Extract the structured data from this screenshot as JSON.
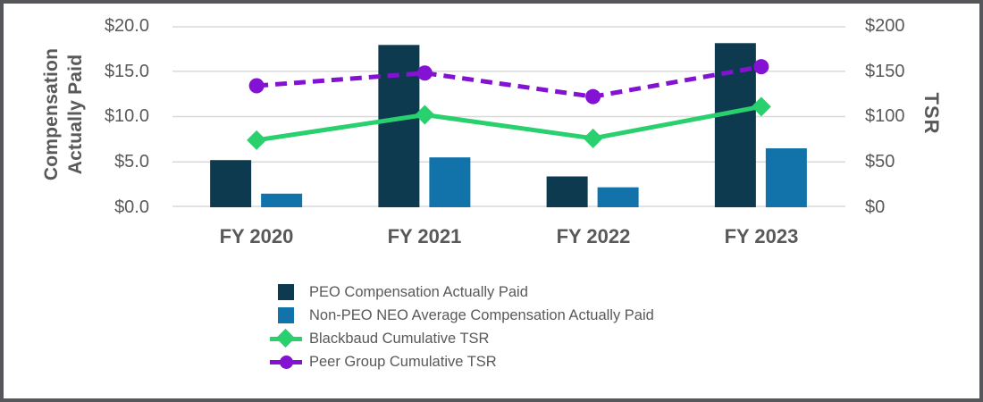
{
  "frame": {
    "background": "#ffffff",
    "border_color": "#55575b"
  },
  "chart_data": {
    "type": "combo-bar-line",
    "categories": [
      "FY 2020",
      "FY 2021",
      "FY 2022",
      "FY 2023"
    ],
    "series": [
      {
        "name": "PEO Compensation Actually Paid",
        "type": "bar",
        "axis": "left",
        "color": "#0e3a50",
        "values": [
          5.2,
          17.9,
          3.4,
          18.1
        ]
      },
      {
        "name": "Non-PEO NEO Average Compensation Actually Paid",
        "type": "bar",
        "axis": "left",
        "color": "#1273ab",
        "values": [
          1.5,
          5.5,
          2.2,
          6.5
        ]
      },
      {
        "name": "Blackbaud Cumulative TSR",
        "type": "line",
        "axis": "right",
        "color": "#29d06e",
        "marker": "diamond",
        "line_style": "solid",
        "values": [
          74,
          102,
          76,
          111
        ]
      },
      {
        "name": "Peer Group Cumulative TSR",
        "type": "line",
        "axis": "right",
        "color": "#8312d2",
        "marker": "circle",
        "line_style": "dashed",
        "values": [
          134,
          148,
          122,
          155
        ]
      }
    ],
    "left_axis": {
      "title": "Compensation Actually Paid",
      "title_lines": [
        "Compensation",
        "Actually Paid"
      ],
      "min": 0,
      "max": 20,
      "ticks": [
        "$20.0",
        "$15.0",
        "$10.0",
        "$5.0",
        "$0.0"
      ]
    },
    "right_axis": {
      "title": "TSR",
      "min": 0,
      "max": 200,
      "ticks": [
        "$200",
        "$150",
        "$100",
        "$50",
        "$0"
      ]
    },
    "grid": true,
    "gridline_color": "#d9d9d9",
    "text_color": "#595959",
    "legend_position": "bottom-center"
  }
}
